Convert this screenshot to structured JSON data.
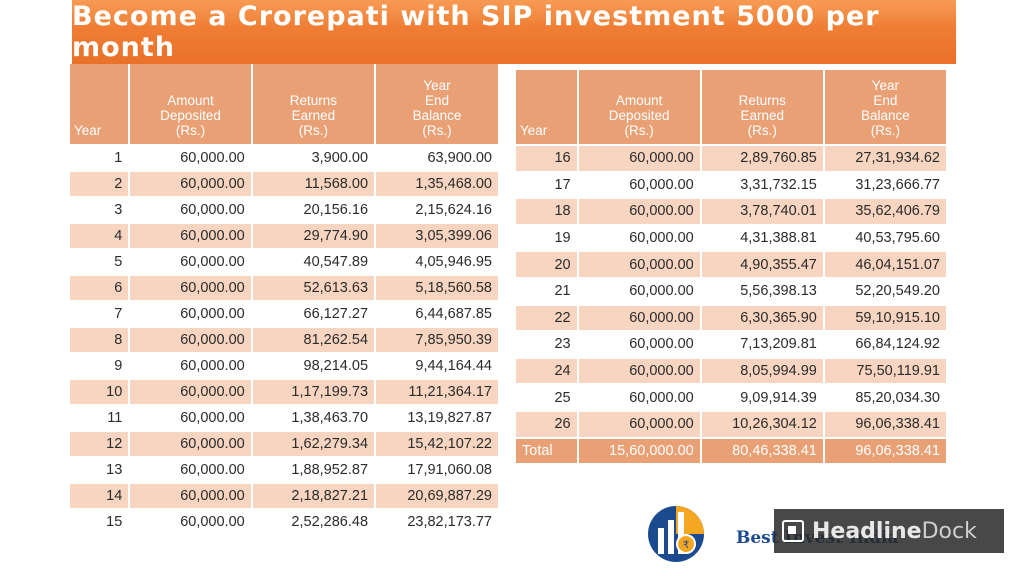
{
  "title": "Become a Crorepati with SIP investment 5000 per month",
  "headers": {
    "year": "Year",
    "amount": [
      "Amount",
      "Deposited",
      "(Rs.)"
    ],
    "returns": [
      "Returns",
      "Earned",
      "(Rs.)"
    ],
    "balance": [
      "Year",
      "End",
      "Balance",
      "(Rs.)"
    ]
  },
  "rows": [
    {
      "year": "1",
      "deposited": "60,000.00",
      "returns": "3,900.00",
      "balance": "63,900.00"
    },
    {
      "year": "2",
      "deposited": "60,000.00",
      "returns": "11,568.00",
      "balance": "1,35,468.00"
    },
    {
      "year": "3",
      "deposited": "60,000.00",
      "returns": "20,156.16",
      "balance": "2,15,624.16"
    },
    {
      "year": "4",
      "deposited": "60,000.00",
      "returns": "29,774.90",
      "balance": "3,05,399.06"
    },
    {
      "year": "5",
      "deposited": "60,000.00",
      "returns": "40,547.89",
      "balance": "4,05,946.95"
    },
    {
      "year": "6",
      "deposited": "60,000.00",
      "returns": "52,613.63",
      "balance": "5,18,560.58"
    },
    {
      "year": "7",
      "deposited": "60,000.00",
      "returns": "66,127.27",
      "balance": "6,44,687.85"
    },
    {
      "year": "8",
      "deposited": "60,000.00",
      "returns": "81,262.54",
      "balance": "7,85,950.39"
    },
    {
      "year": "9",
      "deposited": "60,000.00",
      "returns": "98,214.05",
      "balance": "9,44,164.44"
    },
    {
      "year": "10",
      "deposited": "60,000.00",
      "returns": "1,17,199.73",
      "balance": "11,21,364.17"
    },
    {
      "year": "11",
      "deposited": "60,000.00",
      "returns": "1,38,463.70",
      "balance": "13,19,827.87"
    },
    {
      "year": "12",
      "deposited": "60,000.00",
      "returns": "1,62,279.34",
      "balance": "15,42,107.22"
    },
    {
      "year": "13",
      "deposited": "60,000.00",
      "returns": "1,88,952.87",
      "balance": "17,91,060.08"
    },
    {
      "year": "14",
      "deposited": "60,000.00",
      "returns": "2,18,827.21",
      "balance": "20,69,887.29"
    },
    {
      "year": "15",
      "deposited": "60,000.00",
      "returns": "2,52,286.48",
      "balance": "23,82,173.77"
    },
    {
      "year": "16",
      "deposited": "60,000.00",
      "returns": "2,89,760.85",
      "balance": "27,31,934.62"
    },
    {
      "year": "17",
      "deposited": "60,000.00",
      "returns": "3,31,732.15",
      "balance": "31,23,666.77"
    },
    {
      "year": "18",
      "deposited": "60,000.00",
      "returns": "3,78,740.01",
      "balance": "35,62,406.79"
    },
    {
      "year": "19",
      "deposited": "60,000.00",
      "returns": "4,31,388.81",
      "balance": "40,53,795.60"
    },
    {
      "year": "20",
      "deposited": "60,000.00",
      "returns": "4,90,355.47",
      "balance": "46,04,151.07"
    },
    {
      "year": "21",
      "deposited": "60,000.00",
      "returns": "5,56,398.13",
      "balance": "52,20,549.20"
    },
    {
      "year": "22",
      "deposited": "60,000.00",
      "returns": "6,30,365.90",
      "balance": "59,10,915.10"
    },
    {
      "year": "23",
      "deposited": "60,000.00",
      "returns": "7,13,209.81",
      "balance": "66,84,124.92"
    },
    {
      "year": "24",
      "deposited": "60,000.00",
      "returns": "8,05,994.99",
      "balance": "75,50,119.91"
    },
    {
      "year": "25",
      "deposited": "60,000.00",
      "returns": "9,09,914.39",
      "balance": "85,20,034.30"
    },
    {
      "year": "26",
      "deposited": "60,000.00",
      "returns": "10,26,304.12",
      "balance": "96,06,338.41"
    }
  ],
  "total": {
    "label": "Total",
    "deposited": "15,60,000.00",
    "returns": "80,46,338.41",
    "balance": "96,06,338.41"
  },
  "logo": {
    "brand": "Best Invest India",
    "icon": "rupee-growth-logo"
  },
  "watermark": {
    "pre": "Headline",
    "post": "Dock",
    "icon": "headlinedock-icon"
  },
  "colors": {
    "banner": "#ef7d33",
    "header": "#e9a074",
    "row_alt": "#f7d5c0",
    "brand": "#1b4a8e"
  }
}
